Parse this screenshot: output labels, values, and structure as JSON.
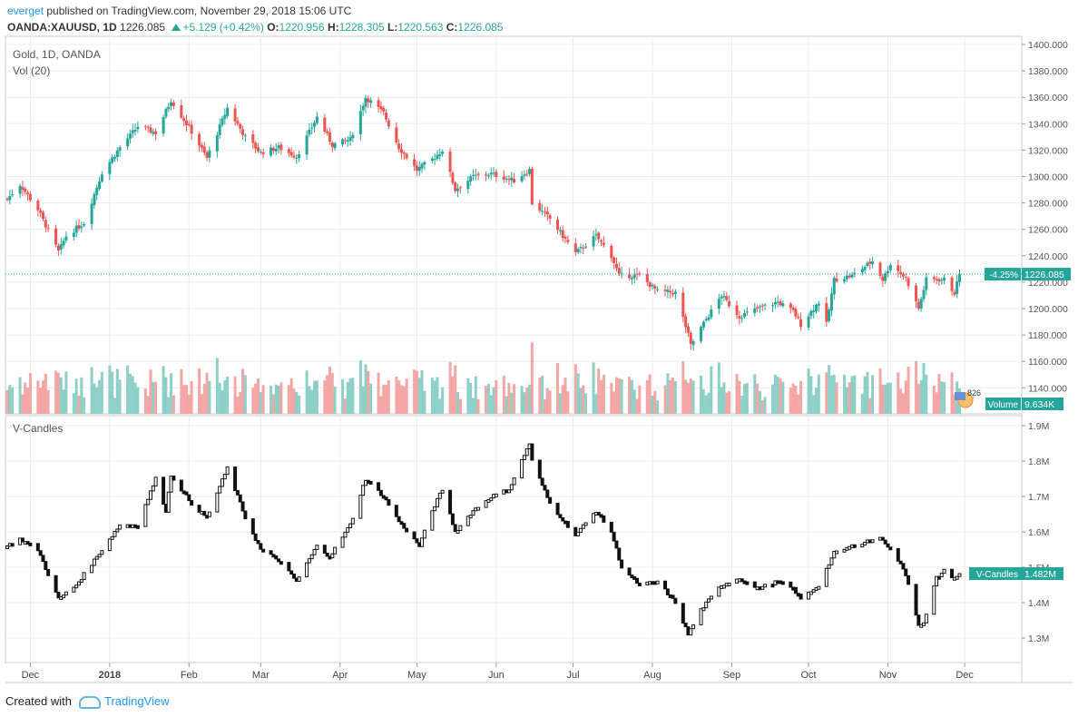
{
  "header": {
    "user": "everget",
    "published": " published on TradingView.com, November 29, 2018 15:06 UTC",
    "symbol": "OANDA:XAUUSD, 1D",
    "last": "1226.085",
    "change": "+5.129 (+0.42%)",
    "o_label": "O:",
    "o_value": "1220.956",
    "h_label": "H:",
    "h_value": "1228.305",
    "l_label": "L:",
    "l_value": "1220.563",
    "c_label": "C:",
    "c_value": "1226.085"
  },
  "main_pane": {
    "title": "Gold, 1D, OANDA",
    "vol_title": "Vol (20)",
    "price_badge_pct": "-4.25%",
    "price_badge_value": "1226.085",
    "volume_badge_label": "Volume",
    "volume_badge_value": "9.634K",
    "mini_icon_text": "826"
  },
  "lower_pane": {
    "title": "V-Candles",
    "badge_label": "V-Candles",
    "badge_value": "1.482M"
  },
  "footer": {
    "created_with": "Created with",
    "brand": "TradingView"
  },
  "colors": {
    "up": "#26a69a",
    "down": "#ef5350",
    "vol_up": "#8ed0c8",
    "vol_down": "#f3a6a4",
    "grid": "#e8ecf0",
    "badge": "#26a69a"
  },
  "chart_data": [
    {
      "type": "candlestick",
      "title": "Gold, 1D, OANDA",
      "x_ticks": [
        "Dec",
        "2018",
        "Feb",
        "Mar",
        "Apr",
        "May",
        "Jun",
        "Jul",
        "Aug",
        "Sep",
        "Oct",
        "Nov",
        "Dec"
      ],
      "y_ticks": [
        "1140.000",
        "1160.000",
        "1180.000",
        "1200.000",
        "1220.000",
        "1240.000",
        "1260.000",
        "1280.000",
        "1300.000",
        "1320.000",
        "1340.000",
        "1360.000",
        "1380.000",
        "1400.000"
      ],
      "ylim": [
        1120,
        1400
      ],
      "last_close": 1226.085,
      "close_keypoints": [
        {
          "date": "2017-11-22",
          "close": 1283
        },
        {
          "date": "2017-11-27",
          "close": 1294
        },
        {
          "date": "2017-12-04",
          "close": 1275
        },
        {
          "date": "2017-12-12",
          "close": 1243
        },
        {
          "date": "2017-12-15",
          "close": 1255
        },
        {
          "date": "2017-12-22",
          "close": 1265
        },
        {
          "date": "2017-12-29",
          "close": 1303
        },
        {
          "date": "2018-01-05",
          "close": 1322
        },
        {
          "date": "2018-01-12",
          "close": 1338
        },
        {
          "date": "2018-01-19",
          "close": 1333
        },
        {
          "date": "2018-01-25",
          "close": 1358
        },
        {
          "date": "2018-02-02",
          "close": 1334
        },
        {
          "date": "2018-02-08",
          "close": 1314
        },
        {
          "date": "2018-02-16",
          "close": 1352
        },
        {
          "date": "2018-02-23",
          "close": 1330
        },
        {
          "date": "2018-03-01",
          "close": 1318
        },
        {
          "date": "2018-03-08",
          "close": 1322
        },
        {
          "date": "2018-03-15",
          "close": 1315
        },
        {
          "date": "2018-03-23",
          "close": 1345
        },
        {
          "date": "2018-03-29",
          "close": 1324
        },
        {
          "date": "2018-04-05",
          "close": 1328
        },
        {
          "date": "2018-04-11",
          "close": 1360
        },
        {
          "date": "2018-04-18",
          "close": 1348
        },
        {
          "date": "2018-04-24",
          "close": 1322
        },
        {
          "date": "2018-05-01",
          "close": 1305
        },
        {
          "date": "2018-05-07",
          "close": 1313
        },
        {
          "date": "2018-05-11",
          "close": 1320
        },
        {
          "date": "2018-05-16",
          "close": 1290
        },
        {
          "date": "2018-05-23",
          "close": 1300
        },
        {
          "date": "2018-05-30",
          "close": 1302
        },
        {
          "date": "2018-06-08",
          "close": 1297
        },
        {
          "date": "2018-06-14",
          "close": 1305
        },
        {
          "date": "2018-06-15",
          "close": 1280
        },
        {
          "date": "2018-06-22",
          "close": 1268
        },
        {
          "date": "2018-07-02",
          "close": 1242
        },
        {
          "date": "2018-07-10",
          "close": 1255
        },
        {
          "date": "2018-07-16",
          "close": 1240
        },
        {
          "date": "2018-07-19",
          "close": 1225
        },
        {
          "date": "2018-07-27",
          "close": 1225
        },
        {
          "date": "2018-08-03",
          "close": 1213
        },
        {
          "date": "2018-08-10",
          "close": 1212
        },
        {
          "date": "2018-08-15",
          "close": 1180
        },
        {
          "date": "2018-08-16",
          "close": 1172
        },
        {
          "date": "2018-08-22",
          "close": 1192
        },
        {
          "date": "2018-08-28",
          "close": 1210
        },
        {
          "date": "2018-09-04",
          "close": 1194
        },
        {
          "date": "2018-09-11",
          "close": 1200
        },
        {
          "date": "2018-09-19",
          "close": 1205
        },
        {
          "date": "2018-09-25",
          "close": 1198
        },
        {
          "date": "2018-09-28",
          "close": 1188
        },
        {
          "date": "2018-10-05",
          "close": 1205
        },
        {
          "date": "2018-10-08",
          "close": 1188
        },
        {
          "date": "2018-10-11",
          "close": 1222
        },
        {
          "date": "2018-10-18",
          "close": 1225
        },
        {
          "date": "2018-10-26",
          "close": 1236
        },
        {
          "date": "2018-10-30",
          "close": 1222
        },
        {
          "date": "2018-11-02",
          "close": 1234
        },
        {
          "date": "2018-11-08",
          "close": 1223
        },
        {
          "date": "2018-11-13",
          "close": 1200
        },
        {
          "date": "2018-11-16",
          "close": 1222
        },
        {
          "date": "2018-11-23",
          "close": 1222
        },
        {
          "date": "2018-11-27",
          "close": 1212
        },
        {
          "date": "2018-11-29",
          "close": 1226.085
        }
      ]
    },
    {
      "type": "bar",
      "title": "Vol (20)",
      "last_value": "9.634K",
      "note": "daily volume histogram, colored by candle direction"
    },
    {
      "type": "candlestick",
      "title": "V-Candles",
      "y_ticks": [
        "1.3M",
        "1.4M",
        "1.5M",
        "1.6M",
        "1.7M",
        "1.8M",
        "1.9M"
      ],
      "ylim": [
        1.26,
        1.92
      ],
      "last_value": "1.482M",
      "close_keypoints": [
        {
          "date": "2017-11-22",
          "close": 1.56
        },
        {
          "date": "2017-11-27",
          "close": 1.58
        },
        {
          "date": "2017-12-04",
          "close": 1.55
        },
        {
          "date": "2017-12-12",
          "close": 1.41
        },
        {
          "date": "2017-12-19",
          "close": 1.45
        },
        {
          "date": "2017-12-27",
          "close": 1.53
        },
        {
          "date": "2018-01-05",
          "close": 1.62
        },
        {
          "date": "2018-01-12",
          "close": 1.62
        },
        {
          "date": "2018-01-19",
          "close": 1.75
        },
        {
          "date": "2018-01-23",
          "close": 1.66
        },
        {
          "date": "2018-01-25",
          "close": 1.76
        },
        {
          "date": "2018-02-02",
          "close": 1.68
        },
        {
          "date": "2018-02-08",
          "close": 1.64
        },
        {
          "date": "2018-02-16",
          "close": 1.78
        },
        {
          "date": "2018-02-23",
          "close": 1.64
        },
        {
          "date": "2018-03-01",
          "close": 1.55
        },
        {
          "date": "2018-03-08",
          "close": 1.52
        },
        {
          "date": "2018-03-15",
          "close": 1.46
        },
        {
          "date": "2018-03-23",
          "close": 1.56
        },
        {
          "date": "2018-03-28",
          "close": 1.53
        },
        {
          "date": "2018-04-05",
          "close": 1.62
        },
        {
          "date": "2018-04-11",
          "close": 1.75
        },
        {
          "date": "2018-04-18",
          "close": 1.7
        },
        {
          "date": "2018-04-24",
          "close": 1.63
        },
        {
          "date": "2018-05-02",
          "close": 1.56
        },
        {
          "date": "2018-05-07",
          "close": 1.66
        },
        {
          "date": "2018-05-11",
          "close": 1.72
        },
        {
          "date": "2018-05-16",
          "close": 1.6
        },
        {
          "date": "2018-05-23",
          "close": 1.66
        },
        {
          "date": "2018-05-30",
          "close": 1.7
        },
        {
          "date": "2018-06-06",
          "close": 1.72
        },
        {
          "date": "2018-06-14",
          "close": 1.85
        },
        {
          "date": "2018-06-15",
          "close": 1.8
        },
        {
          "date": "2018-06-22",
          "close": 1.68
        },
        {
          "date": "2018-07-02",
          "close": 1.59
        },
        {
          "date": "2018-07-10",
          "close": 1.66
        },
        {
          "date": "2018-07-16",
          "close": 1.6
        },
        {
          "date": "2018-07-20",
          "close": 1.5
        },
        {
          "date": "2018-07-27",
          "close": 1.45
        },
        {
          "date": "2018-08-03",
          "close": 1.46
        },
        {
          "date": "2018-08-10",
          "close": 1.4
        },
        {
          "date": "2018-08-15",
          "close": 1.31
        },
        {
          "date": "2018-08-20",
          "close": 1.38
        },
        {
          "date": "2018-08-28",
          "close": 1.45
        },
        {
          "date": "2018-09-04",
          "close": 1.47
        },
        {
          "date": "2018-09-11",
          "close": 1.44
        },
        {
          "date": "2018-09-19",
          "close": 1.46
        },
        {
          "date": "2018-09-25",
          "close": 1.44
        },
        {
          "date": "2018-09-28",
          "close": 1.41
        },
        {
          "date": "2018-10-05",
          "close": 1.45
        },
        {
          "date": "2018-10-11",
          "close": 1.54
        },
        {
          "date": "2018-10-18",
          "close": 1.56
        },
        {
          "date": "2018-10-26",
          "close": 1.58
        },
        {
          "date": "2018-10-30",
          "close": 1.58
        },
        {
          "date": "2018-11-05",
          "close": 1.52
        },
        {
          "date": "2018-11-08",
          "close": 1.48
        },
        {
          "date": "2018-11-13",
          "close": 1.34
        },
        {
          "date": "2018-11-15",
          "close": 1.34
        },
        {
          "date": "2018-11-20",
          "close": 1.47
        },
        {
          "date": "2018-11-23",
          "close": 1.49
        },
        {
          "date": "2018-11-27",
          "close": 1.47
        },
        {
          "date": "2018-11-29",
          "close": 1.482
        }
      ]
    }
  ]
}
